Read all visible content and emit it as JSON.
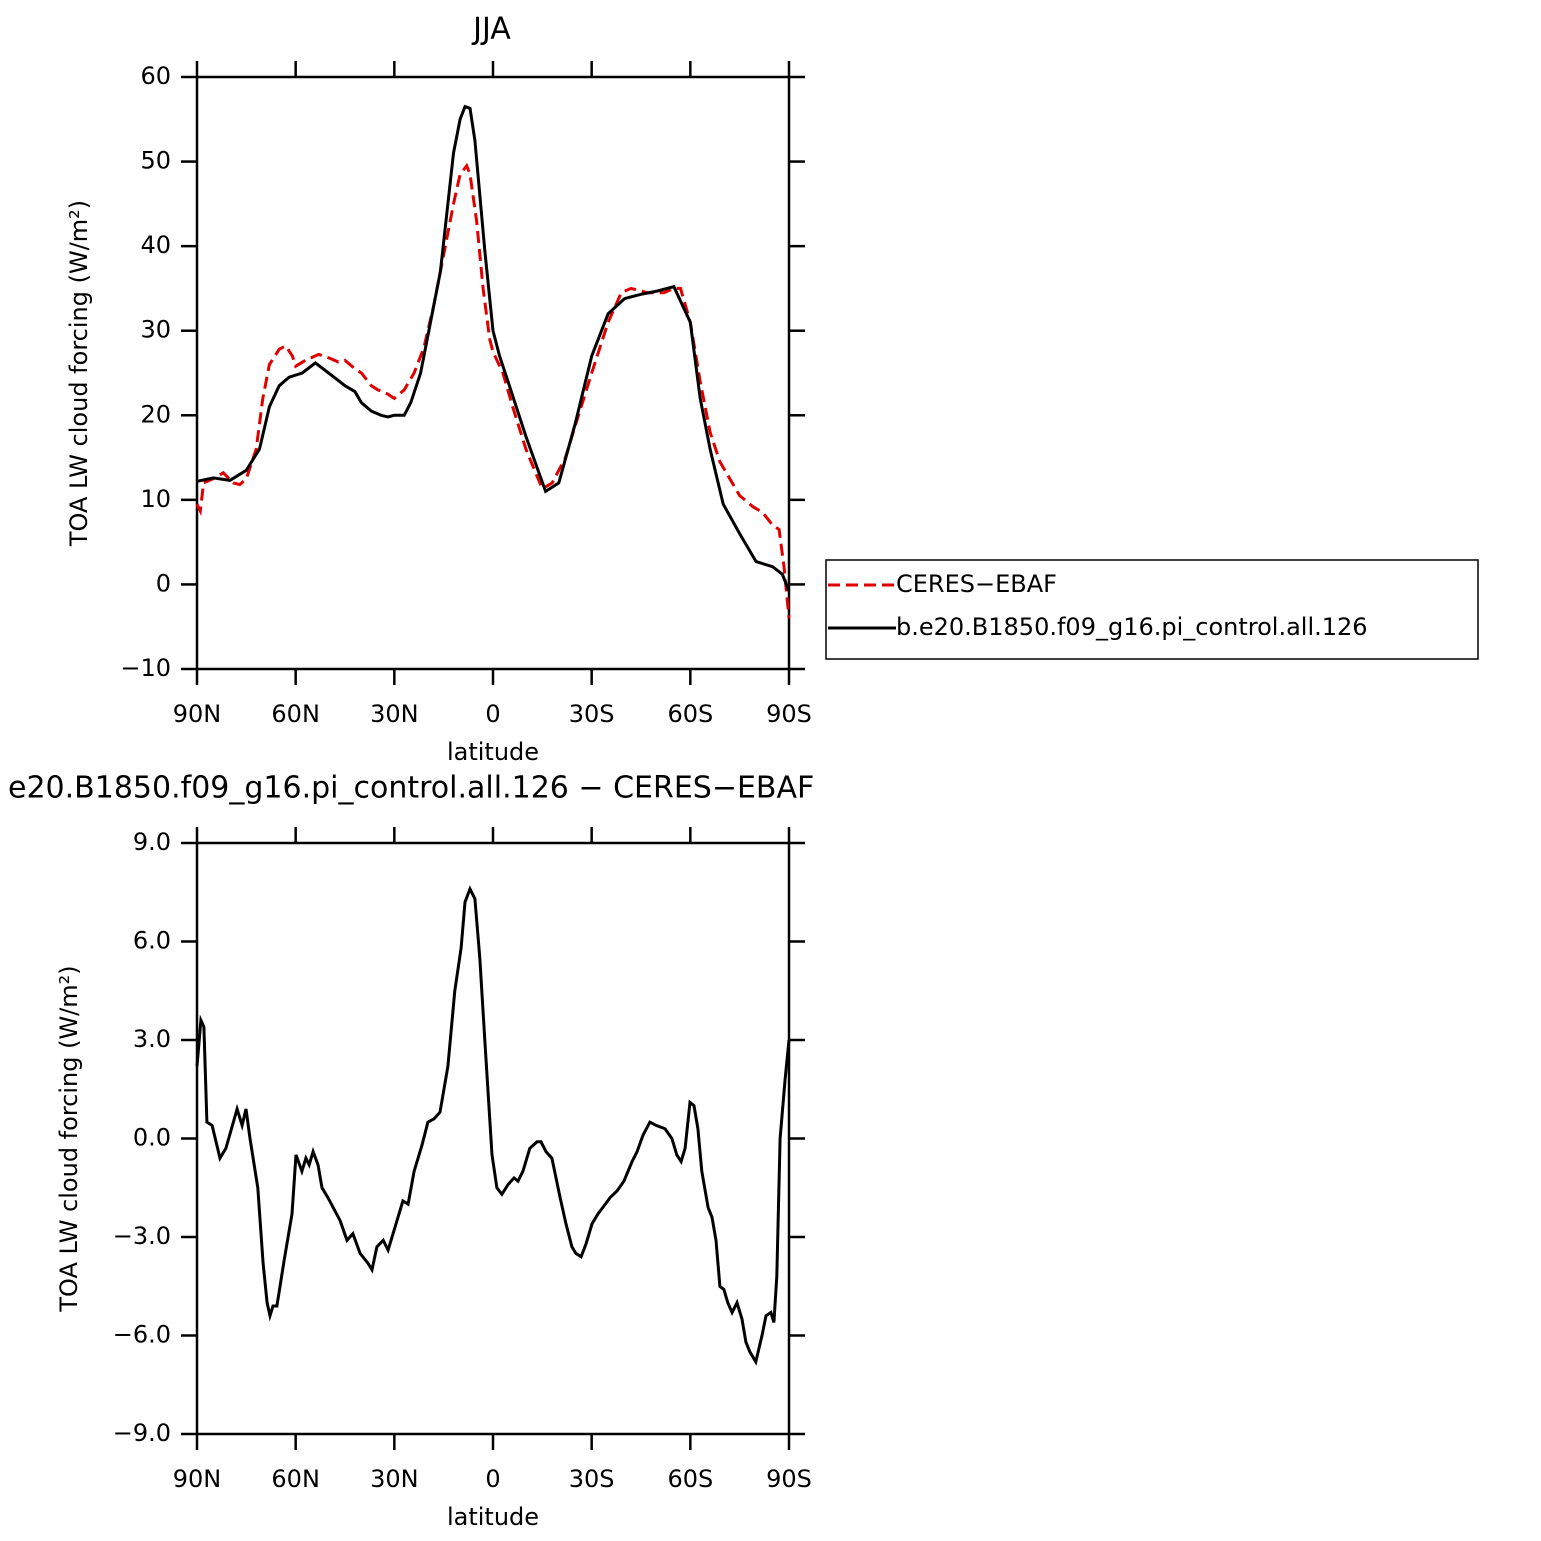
{
  "chart_data": [
    {
      "type": "line",
      "title": "JJA",
      "xlabel": "latitude",
      "ylabel": "TOA LW cloud forcing (W/m²)",
      "xlim": [
        90,
        -90
      ],
      "xticks": [
        {
          "value": 90,
          "label": "90N"
        },
        {
          "value": 60,
          "label": "60N"
        },
        {
          "value": 30,
          "label": "30N"
        },
        0,
        {
          "value": -30,
          "label": "30S"
        },
        {
          "value": -60,
          "label": "60S"
        },
        {
          "value": -90,
          "label": "90S"
        }
      ],
      "ylim": [
        -10,
        60
      ],
      "yticks": [
        {
          "value": -10,
          "label": "−10"
        },
        0,
        10,
        20,
        30,
        40,
        50,
        60
      ],
      "legend": "outside right",
      "series": [
        {
          "name": "CERES−EBAF",
          "color": "#e00000",
          "linestyle": "dashed",
          "x": [
            90,
            89,
            88,
            85,
            82,
            79,
            77,
            75,
            72,
            70,
            68,
            65,
            63,
            61,
            60,
            57,
            53,
            50,
            47,
            45,
            42,
            40,
            37,
            35,
            32,
            30,
            27,
            24,
            21,
            18,
            15,
            12,
            10,
            8,
            7,
            5,
            3,
            1,
            0,
            -3,
            -6,
            -10,
            -15,
            -18,
            -22,
            -26,
            -30,
            -35,
            -39,
            -42,
            -47,
            -52,
            -55,
            -57,
            -60,
            -63,
            -66,
            -69,
            -72,
            -75,
            -79,
            -82,
            -85,
            -87,
            -88.5,
            -90
          ],
          "values": [
            9.5,
            8.7,
            12,
            12.5,
            13.2,
            12,
            11.8,
            12.5,
            16,
            22,
            26,
            27.8,
            28.2,
            27,
            25.8,
            26.5,
            27.2,
            26.8,
            26.3,
            26.5,
            25.5,
            25,
            23.5,
            23,
            22.5,
            22,
            23,
            25,
            28,
            33,
            39,
            45,
            48.5,
            49.5,
            48.5,
            43,
            35,
            29,
            27.5,
            25,
            21,
            16,
            11.3,
            12,
            15,
            20,
            25,
            31,
            34.5,
            35,
            34.5,
            34.5,
            35,
            35,
            31,
            24,
            18,
            14.5,
            12.5,
            10.5,
            9.2,
            8.5,
            7,
            6.5,
            2,
            -4
          ]
        },
        {
          "name": "b.e20.B1850.f09_g16.pi_control.all.126",
          "color": "#000000",
          "linestyle": "solid",
          "x": [
            90,
            85,
            80,
            75,
            71,
            68,
            65,
            62,
            58,
            54,
            50,
            45,
            42,
            40,
            37,
            34,
            32,
            30,
            27,
            25,
            22,
            19,
            16,
            12,
            10,
            8.5,
            7,
            5.5,
            2.5,
            0,
            -2,
            -5,
            -10,
            -16,
            -20,
            -25,
            -30,
            -35,
            -40,
            -45,
            -50,
            -55,
            -60,
            -63,
            -66,
            -70,
            -75,
            -80,
            -85,
            -88,
            -90
          ],
          "values": [
            12.2,
            12.6,
            12.3,
            13.5,
            16,
            21,
            23.5,
            24.5,
            25,
            26.2,
            25,
            23.5,
            22.8,
            21.5,
            20.5,
            20,
            19.8,
            20,
            20,
            21.5,
            25,
            31,
            37,
            51,
            55,
            56.5,
            56.3,
            52.5,
            39.5,
            30,
            27,
            23.5,
            17.5,
            11,
            12,
            19,
            27,
            32,
            33.8,
            34.3,
            34.7,
            35.2,
            31,
            22,
            16,
            9.5,
            6,
            2.7,
            2.1,
            1.2,
            -0.8
          ]
        }
      ]
    },
    {
      "type": "line",
      "title": "e20.B1850.f09_g16.pi_control.all.126 − CERES−EBAF",
      "xlabel": "latitude",
      "ylabel": "TOA LW cloud forcing (W/m²)",
      "xlim": [
        90,
        -90
      ],
      "xticks": [
        {
          "value": 90,
          "label": "90N"
        },
        {
          "value": 60,
          "label": "60N"
        },
        {
          "value": 30,
          "label": "30N"
        },
        0,
        {
          "value": -30,
          "label": "30S"
        },
        {
          "value": -60,
          "label": "60S"
        },
        {
          "value": -90,
          "label": "90S"
        }
      ],
      "ylim": [
        -9,
        9
      ],
      "yticks": [
        {
          "value": -9,
          "label": "−9.0"
        },
        {
          "value": -6,
          "label": "−6.0"
        },
        {
          "value": -3,
          "label": "−3.0"
        },
        {
          "value": 0,
          "label": "0.0"
        },
        {
          "value": 3,
          "label": "3.0"
        },
        {
          "value": 6,
          "label": "6.0"
        },
        {
          "value": 9,
          "label": "9.0"
        }
      ],
      "series": [
        {
          "color": "#000000",
          "linestyle": "solid",
          "x": [
            90,
            88.8,
            87.9,
            87,
            85.4,
            83,
            81.2,
            77.8,
            76.3,
            75.1,
            73.9,
            71.5,
            69.9,
            68.7,
            67.8,
            66.9,
            65.7,
            63.5,
            61.1,
            59.9,
            58.1,
            56.9,
            55.9,
            54.7,
            53.2,
            52,
            50.2,
            46.5,
            44.4,
            42.6,
            40.4,
            38,
            36.8,
            35.3,
            33.4,
            31.9,
            29.5,
            27.4,
            25.8,
            24,
            21.6,
            19.8,
            17.9,
            16.1,
            13.7,
            11.6,
            9.7,
            8.5,
            7,
            5.5,
            4,
            2.5,
            0.3,
            -1.2,
            -2.7,
            -4.6,
            -6.4,
            -7.6,
            -9.1,
            -11.2,
            -13.4,
            -14.6,
            -16.1,
            -17.9,
            -20.4,
            -22.2,
            -24,
            -25.2,
            -26.8,
            -28.3,
            -30.1,
            -31.9,
            -33.4,
            -35.6,
            -37.7,
            -39.8,
            -42.3,
            -43.8,
            -45.6,
            -47.7,
            -49.6,
            -52.3,
            -54.4,
            -55.9,
            -57.2,
            -58.4,
            -59.9,
            -61.1,
            -62.3,
            -63.5,
            -65.4,
            -66.6,
            -67.8,
            -69,
            -70.2,
            -71.4,
            -72.7,
            -74.2,
            -75.7,
            -76.9,
            -78.1,
            -79.9,
            -81.8,
            -83,
            -84.5,
            -85.4,
            -86.3,
            -87.3,
            -88.8,
            -90
          ],
          "values": [
            2.2,
            3.6,
            3.4,
            0.5,
            0.4,
            -0.6,
            -0.3,
            0.9,
            0.4,
            0.9,
            0,
            -1.5,
            -3.8,
            -5,
            -5.4,
            -5.1,
            -5.1,
            -3.7,
            -2.3,
            -0.5,
            -1,
            -0.6,
            -0.8,
            -0.4,
            -0.8,
            -1.5,
            -1.8,
            -2.5,
            -3.1,
            -2.9,
            -3.5,
            -3.8,
            -4,
            -3.3,
            -3.1,
            -3.4,
            -2.6,
            -1.9,
            -2,
            -1,
            -0.2,
            0.5,
            0.6,
            0.8,
            2.2,
            4.5,
            5.8,
            7.2,
            7.6,
            7.3,
            5.5,
            3,
            -0.5,
            -1.5,
            -1.7,
            -1.4,
            -1.2,
            -1.3,
            -1,
            -0.3,
            -0.1,
            -0.1,
            -0.4,
            -0.6,
            -1.8,
            -2.6,
            -3.3,
            -3.5,
            -3.6,
            -3.2,
            -2.6,
            -2.3,
            -2.1,
            -1.8,
            -1.6,
            -1.3,
            -0.7,
            -0.4,
            0.1,
            0.5,
            0.4,
            0.3,
            0,
            -0.5,
            -0.7,
            -0.3,
            1.1,
            1,
            0.3,
            -1,
            -2.1,
            -2.4,
            -3.1,
            -4.5,
            -4.6,
            -5,
            -5.3,
            -5,
            -5.5,
            -6.2,
            -6.5,
            -6.8,
            -6,
            -5.4,
            -5.3,
            -5.6,
            -4.2,
            0,
            1.8,
            3
          ]
        }
      ]
    }
  ]
}
